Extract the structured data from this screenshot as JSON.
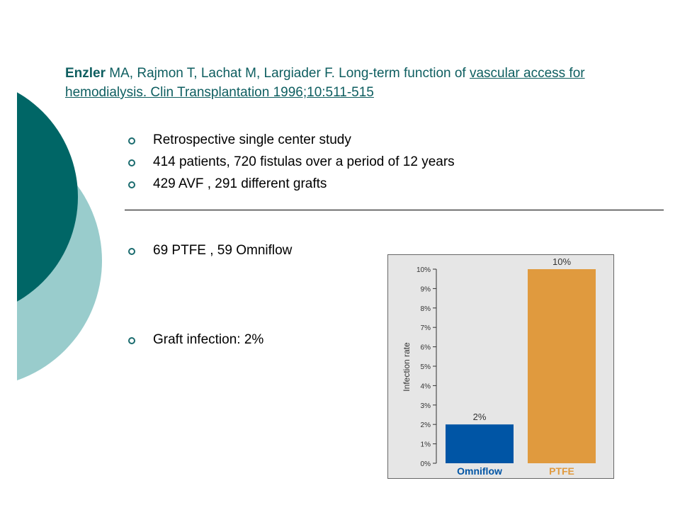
{
  "citation": {
    "author": "Enzler",
    "authors_rest": " MA, Rajmon T, Lachat M, Largiader F.  Long-term function of ",
    "title_link": "vascular access for hemodialysis.  Clin Transplantation 1996;10:511-515"
  },
  "bullets": [
    "Retrospective  single center study",
    "414 patients, 720 fistulas over a period of 12 years",
    "429 AVF , 291 different grafts"
  ],
  "bullet_omniflow": "69 PTFE , 59 Omniflow",
  "bullet_infection": "Graft infection: 2%",
  "colors": {
    "accent_dark": "#006666",
    "accent_light": "#99cccc",
    "omniflow_bar": "#0055a5",
    "ptfe_bar": "#e09a3e"
  },
  "chart_data": {
    "type": "bar",
    "categories": [
      "Omniflow",
      "PTFE"
    ],
    "values": [
      2,
      10
    ],
    "value_labels": [
      "2%",
      "10%"
    ],
    "ylabel": "Infection rate",
    "yticks": [
      "0%",
      "1%",
      "2%",
      "3%",
      "4%",
      "5%",
      "6%",
      "7%",
      "8%",
      "9%",
      "10%"
    ],
    "ylim": [
      0,
      10
    ],
    "grid": false,
    "category_colors": [
      "#0055a5",
      "#e09a3e"
    ]
  }
}
